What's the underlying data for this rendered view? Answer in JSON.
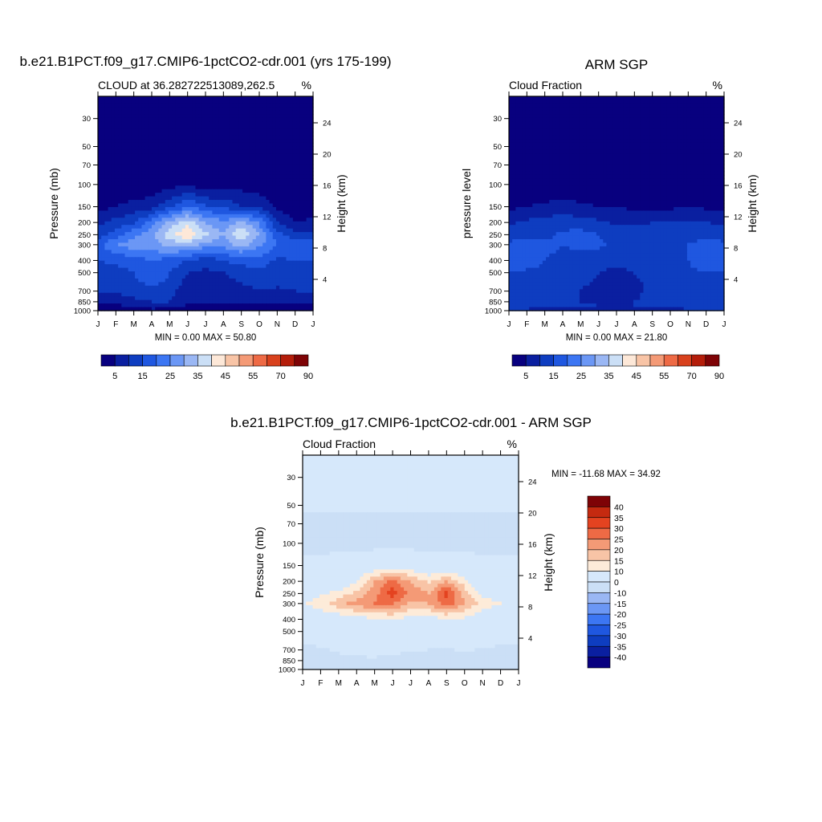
{
  "figure": {
    "panel1_title": "b.e21.B1PCT.f09_g17.CMIP6-1pctCO2-cdr.001 (yrs 175-199)",
    "panel2_title": "ARM SGP",
    "panel3_title": "b.e21.B1PCT.f09_g17.CMIP6-1pctCO2-cdr.001 - ARM SGP"
  },
  "colors": {
    "abs_scale": [
      "#08007f",
      "#0a1fa0",
      "#0e3dc0",
      "#1f57e0",
      "#3c76f3",
      "#6b97f5",
      "#9ab7f4",
      "#cbdff6",
      "#fde8d8",
      "#f8c4a6",
      "#f49a76",
      "#ee6a45",
      "#d8411d",
      "#b41d0a",
      "#7e0306"
    ],
    "diff_scale": [
      "#08007f",
      "#0a1fa0",
      "#0e3dc0",
      "#1f57e0",
      "#3c76f3",
      "#6b97f5",
      "#9ab7f4",
      "#cbdff6",
      "#d6e8fb",
      "#fdebd9",
      "#f8c4a6",
      "#f49a76",
      "#ee6a45",
      "#e44320",
      "#c52a10",
      "#7e0306"
    ]
  },
  "chart_data": [
    {
      "type": "heatmap",
      "plot_type": "filled contour",
      "title": "b.e21.B1PCT.f09_g17.CMIP6-1pctCO2-cdr.001 (yrs 175-199)",
      "left_string": "CLOUD at 36.282722513089,262.5",
      "units": "%",
      "ylabel": "Pressure (mb)",
      "ylabel_right": "Height (km)",
      "x_ticks": [
        "J",
        "F",
        "M",
        "A",
        "M",
        "J",
        "J",
        "A",
        "S",
        "O",
        "N",
        "D",
        "J"
      ],
      "y_ticks": [
        "30",
        "50",
        "70",
        "100",
        "150",
        "200",
        "250",
        "300",
        "400",
        "500",
        "700",
        "850",
        "1000"
      ],
      "y_ticks_right": [
        "24",
        "20",
        "16",
        "12",
        "8",
        "4"
      ],
      "ylim": [
        1000,
        20
      ],
      "y_scale": "log",
      "min_max": "MIN =   0.00 MAX =  50.80",
      "levels": [
        5,
        10,
        15,
        20,
        25,
        30,
        35,
        40,
        45,
        50,
        55,
        60,
        70,
        80,
        90
      ],
      "label_bar": [
        "5",
        "15",
        "25",
        "35",
        "45",
        "55",
        "70",
        "90"
      ],
      "grid_pressure": [
        1000,
        925,
        850,
        700,
        600,
        500,
        400,
        300,
        250,
        200,
        150,
        100,
        70,
        50,
        30
      ],
      "months": [
        "J",
        "F",
        "M",
        "A",
        "M",
        "J",
        "J",
        "A",
        "S",
        "O",
        "N",
        "D",
        "J"
      ],
      "values": [
        [
          3,
          3,
          3,
          3,
          3,
          3,
          3,
          3,
          3,
          3,
          3,
          3,
          3
        ],
        [
          4,
          4,
          4,
          8,
          6,
          4,
          3,
          3,
          4,
          4,
          4,
          4,
          4
        ],
        [
          8,
          8,
          9,
          10,
          10,
          6,
          5,
          5,
          6,
          7,
          7,
          8,
          8
        ],
        [
          10,
          10,
          12,
          14,
          12,
          7,
          6,
          6,
          8,
          10,
          9,
          10,
          10
        ],
        [
          12,
          12,
          14,
          16,
          14,
          8,
          7,
          8,
          10,
          12,
          11,
          12,
          12
        ],
        [
          13,
          13,
          15,
          18,
          15,
          10,
          9,
          10,
          12,
          14,
          12,
          13,
          13
        ],
        [
          15,
          16,
          18,
          20,
          18,
          15,
          12,
          15,
          17,
          18,
          14,
          15,
          15
        ],
        [
          18,
          25,
          28,
          28,
          32,
          32,
          28,
          27,
          32,
          26,
          20,
          18,
          18
        ],
        [
          13,
          17,
          24,
          28,
          38,
          45,
          36,
          30,
          40,
          30,
          17,
          12,
          12
        ],
        [
          8,
          12,
          14,
          22,
          32,
          38,
          30,
          26,
          32,
          24,
          10,
          5,
          6
        ],
        [
          3,
          5,
          7,
          8,
          14,
          20,
          16,
          14,
          10,
          10,
          4,
          2,
          2
        ],
        [
          0,
          0,
          0,
          1,
          3,
          4,
          1,
          2,
          3,
          1,
          0,
          0,
          0
        ],
        [
          0,
          0,
          0,
          0,
          0,
          0,
          0,
          0,
          0,
          0,
          0,
          0,
          0
        ],
        [
          0,
          0,
          0,
          0,
          0,
          0,
          0,
          0,
          0,
          0,
          0,
          0,
          0
        ],
        [
          0,
          0,
          0,
          0,
          0,
          0,
          0,
          0,
          0,
          0,
          0,
          0,
          0
        ]
      ]
    },
    {
      "type": "heatmap",
      "plot_type": "filled contour",
      "title": "ARM SGP",
      "left_string": "Cloud Fraction",
      "units": "%",
      "ylabel": "pressure level",
      "ylabel_right": "Height (km)",
      "x_ticks": [
        "J",
        "F",
        "M",
        "A",
        "M",
        "J",
        "J",
        "A",
        "S",
        "O",
        "N",
        "D",
        "J"
      ],
      "y_ticks": [
        "30",
        "50",
        "70",
        "100",
        "150",
        "200",
        "250",
        "300",
        "400",
        "500",
        "700",
        "850",
        "1000"
      ],
      "y_ticks_right": [
        "24",
        "20",
        "16",
        "12",
        "8",
        "4"
      ],
      "ylim": [
        1000,
        20
      ],
      "y_scale": "log",
      "min_max": "MIN =   0.00 MAX =  21.80",
      "levels": [
        5,
        10,
        15,
        20,
        25,
        30,
        35,
        40,
        45,
        50,
        55,
        60,
        70,
        80,
        90
      ],
      "label_bar": [
        "5",
        "15",
        "25",
        "35",
        "45",
        "55",
        "70",
        "90"
      ],
      "grid_pressure": [
        1000,
        925,
        850,
        700,
        600,
        500,
        400,
        300,
        250,
        200,
        150,
        100,
        70,
        50,
        30
      ],
      "months": [
        "J",
        "F",
        "M",
        "A",
        "M",
        "J",
        "J",
        "A",
        "S",
        "O",
        "N",
        "D",
        "J"
      ],
      "values": [
        [
          8,
          8,
          8,
          8,
          8,
          8,
          8,
          8,
          8,
          8,
          8,
          8,
          8
        ],
        [
          13,
          13,
          12,
          12,
          12,
          10,
          10,
          10,
          11,
          12,
          13,
          14,
          13
        ],
        [
          12,
          12,
          11,
          11,
          10,
          9,
          9,
          10,
          11,
          12,
          12,
          13,
          12
        ],
        [
          13,
          12,
          12,
          12,
          10,
          8,
          8,
          9,
          11,
          12,
          13,
          14,
          13
        ],
        [
          14,
          13,
          13,
          12,
          11,
          9,
          9,
          9,
          11,
          12,
          13,
          14,
          14
        ],
        [
          15,
          14,
          14,
          13,
          12,
          10,
          9,
          10,
          12,
          12,
          14,
          15,
          15
        ],
        [
          17,
          18,
          15,
          14,
          13,
          12,
          11,
          12,
          13,
          13,
          15,
          18,
          17
        ],
        [
          16,
          17,
          16,
          15,
          16,
          16,
          14,
          13,
          14,
          15,
          15,
          17,
          16
        ],
        [
          13,
          14,
          14,
          16,
          17,
          15,
          13,
          12,
          13,
          14,
          13,
          14,
          13
        ],
        [
          9,
          11,
          12,
          13,
          12,
          11,
          9,
          9,
          10,
          10,
          11,
          10,
          9
        ],
        [
          4,
          5,
          6,
          7,
          6,
          5,
          5,
          4,
          4,
          4,
          5,
          4,
          4
        ],
        [
          1,
          1,
          1,
          1,
          1,
          1,
          1,
          1,
          1,
          1,
          1,
          1,
          1
        ],
        [
          0,
          0,
          0,
          0,
          0,
          0,
          0,
          0,
          0,
          0,
          0,
          0,
          0
        ],
        [
          0,
          0,
          0,
          0,
          0,
          0,
          0,
          0,
          0,
          0,
          0,
          0,
          0
        ],
        [
          0,
          0,
          0,
          0,
          0,
          0,
          0,
          0,
          0,
          0,
          0,
          0,
          0
        ]
      ]
    },
    {
      "type": "heatmap",
      "plot_type": "filled contour",
      "title": "b.e21.B1PCT.f09_g17.CMIP6-1pctCO2-cdr.001 - ARM SGP",
      "left_string": "Cloud Fraction",
      "units": "%",
      "ylabel": "Pressure (mb)",
      "ylabel_right": "Height (km)",
      "x_ticks": [
        "J",
        "F",
        "M",
        "A",
        "M",
        "J",
        "J",
        "A",
        "S",
        "O",
        "N",
        "D",
        "J"
      ],
      "y_ticks": [
        "30",
        "50",
        "70",
        "100",
        "150",
        "200",
        "250",
        "300",
        "400",
        "500",
        "700",
        "850",
        "1000"
      ],
      "y_ticks_right": [
        "24",
        "20",
        "16",
        "12",
        "8",
        "4"
      ],
      "ylim": [
        1000,
        20
      ],
      "y_scale": "log",
      "min_max": "MIN = -11.68 MAX =  34.92",
      "levels": [
        -40,
        -35,
        -30,
        -25,
        -20,
        -15,
        -10,
        0,
        10,
        15,
        20,
        25,
        30,
        35,
        40
      ],
      "label_bar": [
        "40",
        "35",
        "30",
        "25",
        "20",
        "15",
        "10",
        "0",
        "-10",
        "-15",
        "-20",
        "-25",
        "-30",
        "-35",
        "-40"
      ],
      "grid_pressure": [
        1000,
        925,
        850,
        700,
        600,
        500,
        400,
        300,
        250,
        200,
        150,
        100,
        70,
        50,
        30
      ],
      "months": [
        "J",
        "F",
        "M",
        "A",
        "M",
        "J",
        "J",
        "A",
        "S",
        "O",
        "N",
        "D",
        "J"
      ],
      "values": [
        [
          -5,
          -5,
          -5,
          -5,
          -5,
          -5,
          -5,
          -5,
          -5,
          -5,
          -5,
          -5,
          -5
        ],
        [
          -4,
          -4,
          -4,
          -6,
          -5,
          -4,
          -4,
          -4,
          -4,
          -5,
          -4,
          -4,
          -4
        ],
        [
          -3,
          -3,
          -2,
          -2,
          -1,
          -3,
          -4,
          -3,
          -3,
          -2,
          -3,
          -3,
          -3
        ],
        [
          -2,
          -1,
          1,
          2,
          3,
          2,
          1,
          0,
          -1,
          1,
          -1,
          -1,
          -2
        ],
        [
          1,
          2,
          3,
          4,
          5,
          3,
          2,
          2,
          3,
          4,
          2,
          1,
          1
        ],
        [
          2,
          3,
          4,
          5,
          6,
          4,
          3,
          3,
          4,
          5,
          3,
          2,
          2
        ],
        [
          4,
          5,
          6,
          8,
          9,
          10,
          8,
          8,
          9,
          9,
          4,
          3,
          4
        ],
        [
          9,
          13,
          18,
          22,
          25,
          26,
          18,
          20,
          28,
          20,
          14,
          10,
          9
        ],
        [
          6,
          9,
          12,
          16,
          23,
          33,
          24,
          20,
          32,
          18,
          8,
          4,
          5
        ],
        [
          1,
          2,
          4,
          10,
          20,
          27,
          20,
          14,
          20,
          12,
          3,
          1,
          1
        ],
        [
          2,
          2,
          3,
          4,
          5,
          6,
          5,
          4,
          3,
          3,
          2,
          2,
          2
        ],
        [
          -2,
          -2,
          -2,
          -2,
          -2,
          -2,
          -2,
          -2,
          -2,
          -2,
          -2,
          -2,
          -2
        ],
        [
          -3,
          -3,
          -3,
          -3,
          -3,
          -3,
          -3,
          -3,
          -3,
          -3,
          -3,
          -3,
          -3
        ],
        [
          2,
          2,
          2,
          2,
          2,
          2,
          2,
          2,
          2,
          2,
          2,
          2,
          2
        ],
        [
          2,
          2,
          2,
          2,
          2,
          2,
          2,
          2,
          2,
          2,
          2,
          2,
          2
        ]
      ]
    }
  ]
}
